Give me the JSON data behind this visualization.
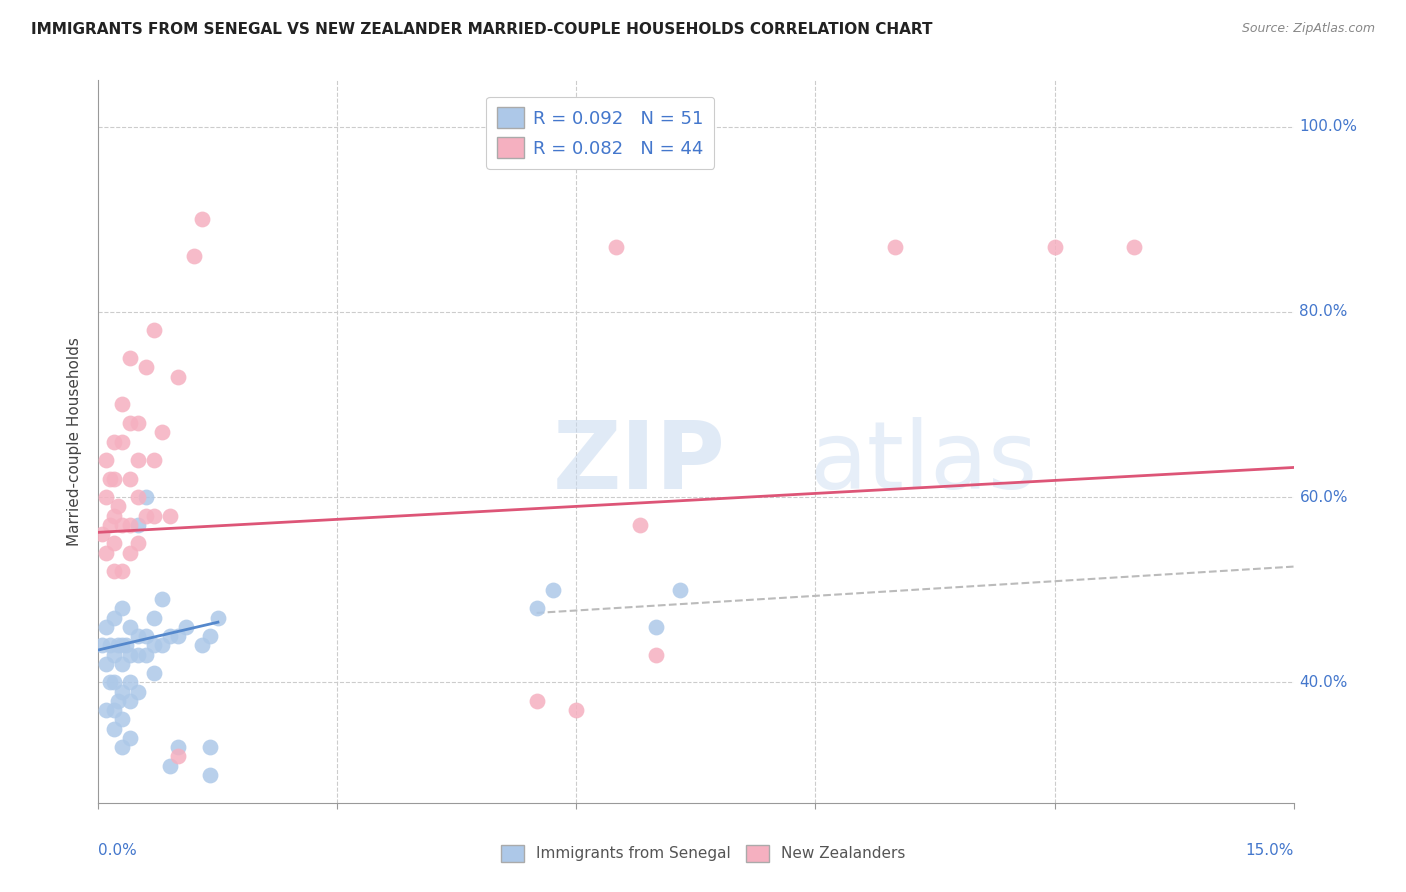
{
  "title": "IMMIGRANTS FROM SENEGAL VS NEW ZEALANDER MARRIED-COUPLE HOUSEHOLDS CORRELATION CHART",
  "source": "Source: ZipAtlas.com",
  "ylabel": "Married-couple Households",
  "legend_entry1": "R = 0.092   N = 51",
  "legend_entry2": "R = 0.082   N = 44",
  "legend_label1": "Immigrants from Senegal",
  "legend_label2": "New Zealanders",
  "blue_color": "#adc8e8",
  "pink_color": "#f5b0c0",
  "line_blue": "#5588cc",
  "line_pink": "#dd5577",
  "dash_color": "#bbbbbb",
  "text_blue": "#4477cc",
  "xlim": [
    0.0,
    0.15
  ],
  "ylim": [
    0.27,
    1.05
  ],
  "grid_color": "#cccccc",
  "blue_scatter_x": [
    0.0005,
    0.001,
    0.001,
    0.001,
    0.0015,
    0.0015,
    0.002,
    0.002,
    0.002,
    0.002,
    0.002,
    0.0025,
    0.0025,
    0.003,
    0.003,
    0.003,
    0.003,
    0.003,
    0.003,
    0.0035,
    0.004,
    0.004,
    0.004,
    0.004,
    0.004,
    0.005,
    0.005,
    0.005,
    0.005,
    0.006,
    0.006,
    0.006,
    0.007,
    0.007,
    0.007,
    0.008,
    0.008,
    0.009,
    0.009,
    0.01,
    0.01,
    0.011,
    0.013,
    0.014,
    0.014,
    0.014,
    0.015,
    0.055,
    0.057,
    0.07,
    0.073
  ],
  "blue_scatter_y": [
    0.44,
    0.37,
    0.42,
    0.46,
    0.4,
    0.44,
    0.35,
    0.37,
    0.4,
    0.43,
    0.47,
    0.38,
    0.44,
    0.33,
    0.36,
    0.39,
    0.42,
    0.44,
    0.48,
    0.44,
    0.34,
    0.38,
    0.4,
    0.43,
    0.46,
    0.39,
    0.43,
    0.45,
    0.57,
    0.43,
    0.45,
    0.6,
    0.41,
    0.44,
    0.47,
    0.44,
    0.49,
    0.31,
    0.45,
    0.33,
    0.45,
    0.46,
    0.44,
    0.3,
    0.33,
    0.45,
    0.47,
    0.48,
    0.5,
    0.46,
    0.5
  ],
  "pink_scatter_x": [
    0.0005,
    0.001,
    0.001,
    0.001,
    0.0015,
    0.0015,
    0.002,
    0.002,
    0.002,
    0.002,
    0.002,
    0.0025,
    0.003,
    0.003,
    0.003,
    0.003,
    0.004,
    0.004,
    0.004,
    0.004,
    0.004,
    0.005,
    0.005,
    0.005,
    0.005,
    0.006,
    0.006,
    0.007,
    0.007,
    0.007,
    0.008,
    0.009,
    0.01,
    0.01,
    0.012,
    0.013,
    0.055,
    0.06,
    0.065,
    0.068,
    0.07,
    0.1,
    0.12,
    0.13
  ],
  "pink_scatter_y": [
    0.56,
    0.54,
    0.6,
    0.64,
    0.57,
    0.62,
    0.52,
    0.55,
    0.58,
    0.62,
    0.66,
    0.59,
    0.52,
    0.57,
    0.66,
    0.7,
    0.54,
    0.57,
    0.62,
    0.68,
    0.75,
    0.55,
    0.6,
    0.64,
    0.68,
    0.58,
    0.74,
    0.58,
    0.64,
    0.78,
    0.67,
    0.58,
    0.32,
    0.73,
    0.86,
    0.9,
    0.38,
    0.37,
    0.87,
    0.57,
    0.43,
    0.87,
    0.87,
    0.87
  ],
  "blue_trend_x": [
    0.0,
    0.015
  ],
  "blue_trend_y": [
    0.435,
    0.465
  ],
  "pink_trend_x": [
    0.0,
    0.15
  ],
  "pink_trend_y": [
    0.562,
    0.632
  ],
  "dash_trend_x": [
    0.055,
    0.15
  ],
  "dash_trend_y": [
    0.475,
    0.525
  ],
  "ytick_vals": [
    0.4,
    0.6,
    0.8,
    1.0
  ],
  "ytick_labels": [
    "40.0%",
    "60.0%",
    "80.0%",
    "100.0%"
  ],
  "xtick_vals": [
    0.0,
    0.03,
    0.06,
    0.09,
    0.12,
    0.15
  ],
  "hgrid_vals": [
    0.4,
    0.6,
    0.8,
    1.0
  ],
  "vgrid_vals": [
    0.03,
    0.06,
    0.09,
    0.12
  ]
}
